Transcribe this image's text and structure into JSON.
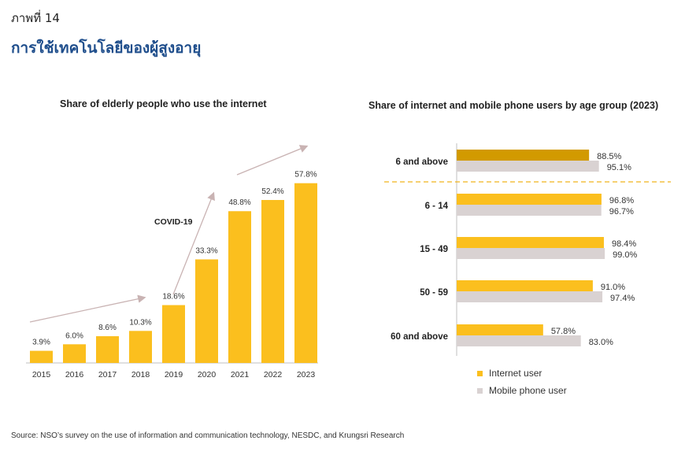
{
  "figure": {
    "label": "ภาพที่ 14",
    "title": "การใช้เทคโนโลยีของผู้สูงอายุ"
  },
  "colors": {
    "internet": "#FBBF1E",
    "internet_highlight": "#D29A00",
    "mobile": "#D9D2D2",
    "arrow": "#C9B3B3",
    "divider": "#F1B31C"
  },
  "chart_data": [
    {
      "type": "bar",
      "title": "Share of elderly people who use the internet",
      "categories": [
        "2015",
        "2016",
        "2017",
        "2018",
        "2019",
        "2020",
        "2021",
        "2022",
        "2023"
      ],
      "values": [
        3.9,
        6.0,
        8.6,
        10.3,
        18.6,
        33.3,
        48.8,
        52.4,
        57.8
      ],
      "value_labels": [
        "3.9%",
        "6.0%",
        "8.6%",
        "10.3%",
        "18.6%",
        "33.3%",
        "48.8%",
        "52.4%",
        "57.8%"
      ],
      "annotations": [
        "COVID-19"
      ],
      "ylim": [
        0,
        65
      ],
      "grid": false
    },
    {
      "type": "bar",
      "orientation": "horizontal",
      "title": "Share of internet and mobile phone users by age group (2023)",
      "categories": [
        "6 and above",
        "6 - 14",
        "15 - 49",
        "50 - 59",
        "60 and above"
      ],
      "series": [
        {
          "name": "Internet user",
          "values": [
            88.5,
            96.8,
            98.4,
            91.0,
            57.8
          ],
          "value_labels": [
            "88.5%",
            "96.8%",
            "98.4%",
            "91.0%",
            "57.8%"
          ]
        },
        {
          "name": "Mobile phone user",
          "values": [
            95.1,
            96.7,
            99.0,
            97.4,
            83.0
          ],
          "value_labels": [
            "95.1%",
            "96.7%",
            "99.0%",
            "97.4%",
            "83.0%"
          ]
        }
      ],
      "xlim": [
        0,
        100
      ],
      "legend": "bottom-left",
      "grid": false
    }
  ],
  "source": "Source: NSO’s survey on the use of information and communication technology, NESDC, and Krungsri Research"
}
